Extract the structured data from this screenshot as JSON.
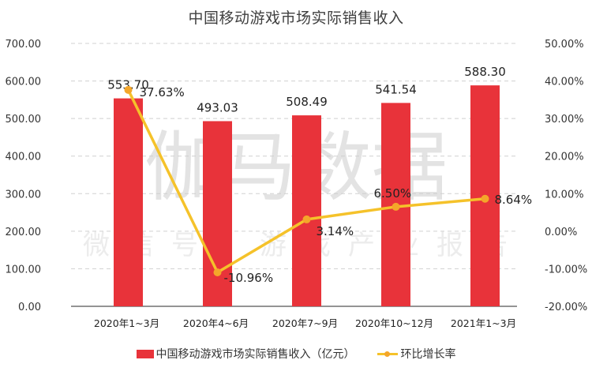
{
  "title": "中国移动游戏市场实际销售收入",
  "watermark": {
    "main": "伽马数据",
    "sub": "微信号：游戏产业报告"
  },
  "legend": {
    "bar_label": "中国移动游戏市场实际销售收入（亿元）",
    "line_label": "环比增长率"
  },
  "colors": {
    "bar": "#e8333a",
    "line": "#f5c22a",
    "marker": "#f4a62a",
    "grid": "#d0d0d0",
    "axis": "#555555"
  },
  "left_axis_ticks": [
    "700.00",
    "600.00",
    "500.00",
    "400.00",
    "300.00",
    "200.00",
    "100.00",
    "0.00"
  ],
  "right_axis_ticks": [
    "50.00%",
    "40.00%",
    "30.00%",
    "20.00%",
    "10.00%",
    "0.00%",
    "-10.00%",
    "-20.00%"
  ],
  "chart_data": {
    "type": "bar+line",
    "title": "中国移动游戏市场实际销售收入",
    "categories": [
      "2020年1~3月",
      "2020年4~6月",
      "2020年7~9月",
      "2020年10~12月",
      "2021年1~3月"
    ],
    "series": [
      {
        "name": "中国移动游戏市场实际销售收入（亿元）",
        "type": "bar",
        "axis": "left",
        "values": [
          553.7,
          493.03,
          508.49,
          541.54,
          588.3
        ],
        "labels": [
          "553.70",
          "493.03",
          "508.49",
          "541.54",
          "588.30"
        ]
      },
      {
        "name": "环比增长率",
        "type": "line",
        "axis": "right",
        "values": [
          37.63,
          -10.96,
          3.14,
          6.5,
          8.64
        ],
        "labels": [
          "37.63%",
          "-10.96%",
          "3.14%",
          "6.50%",
          "8.64%"
        ]
      }
    ],
    "left_axis": {
      "min": 0,
      "max": 700,
      "step": 100,
      "format": "0.00"
    },
    "right_axis": {
      "min": -20,
      "max": 50,
      "step": 10,
      "format": "0.00%"
    },
    "grid": true,
    "legend_position": "bottom"
  }
}
